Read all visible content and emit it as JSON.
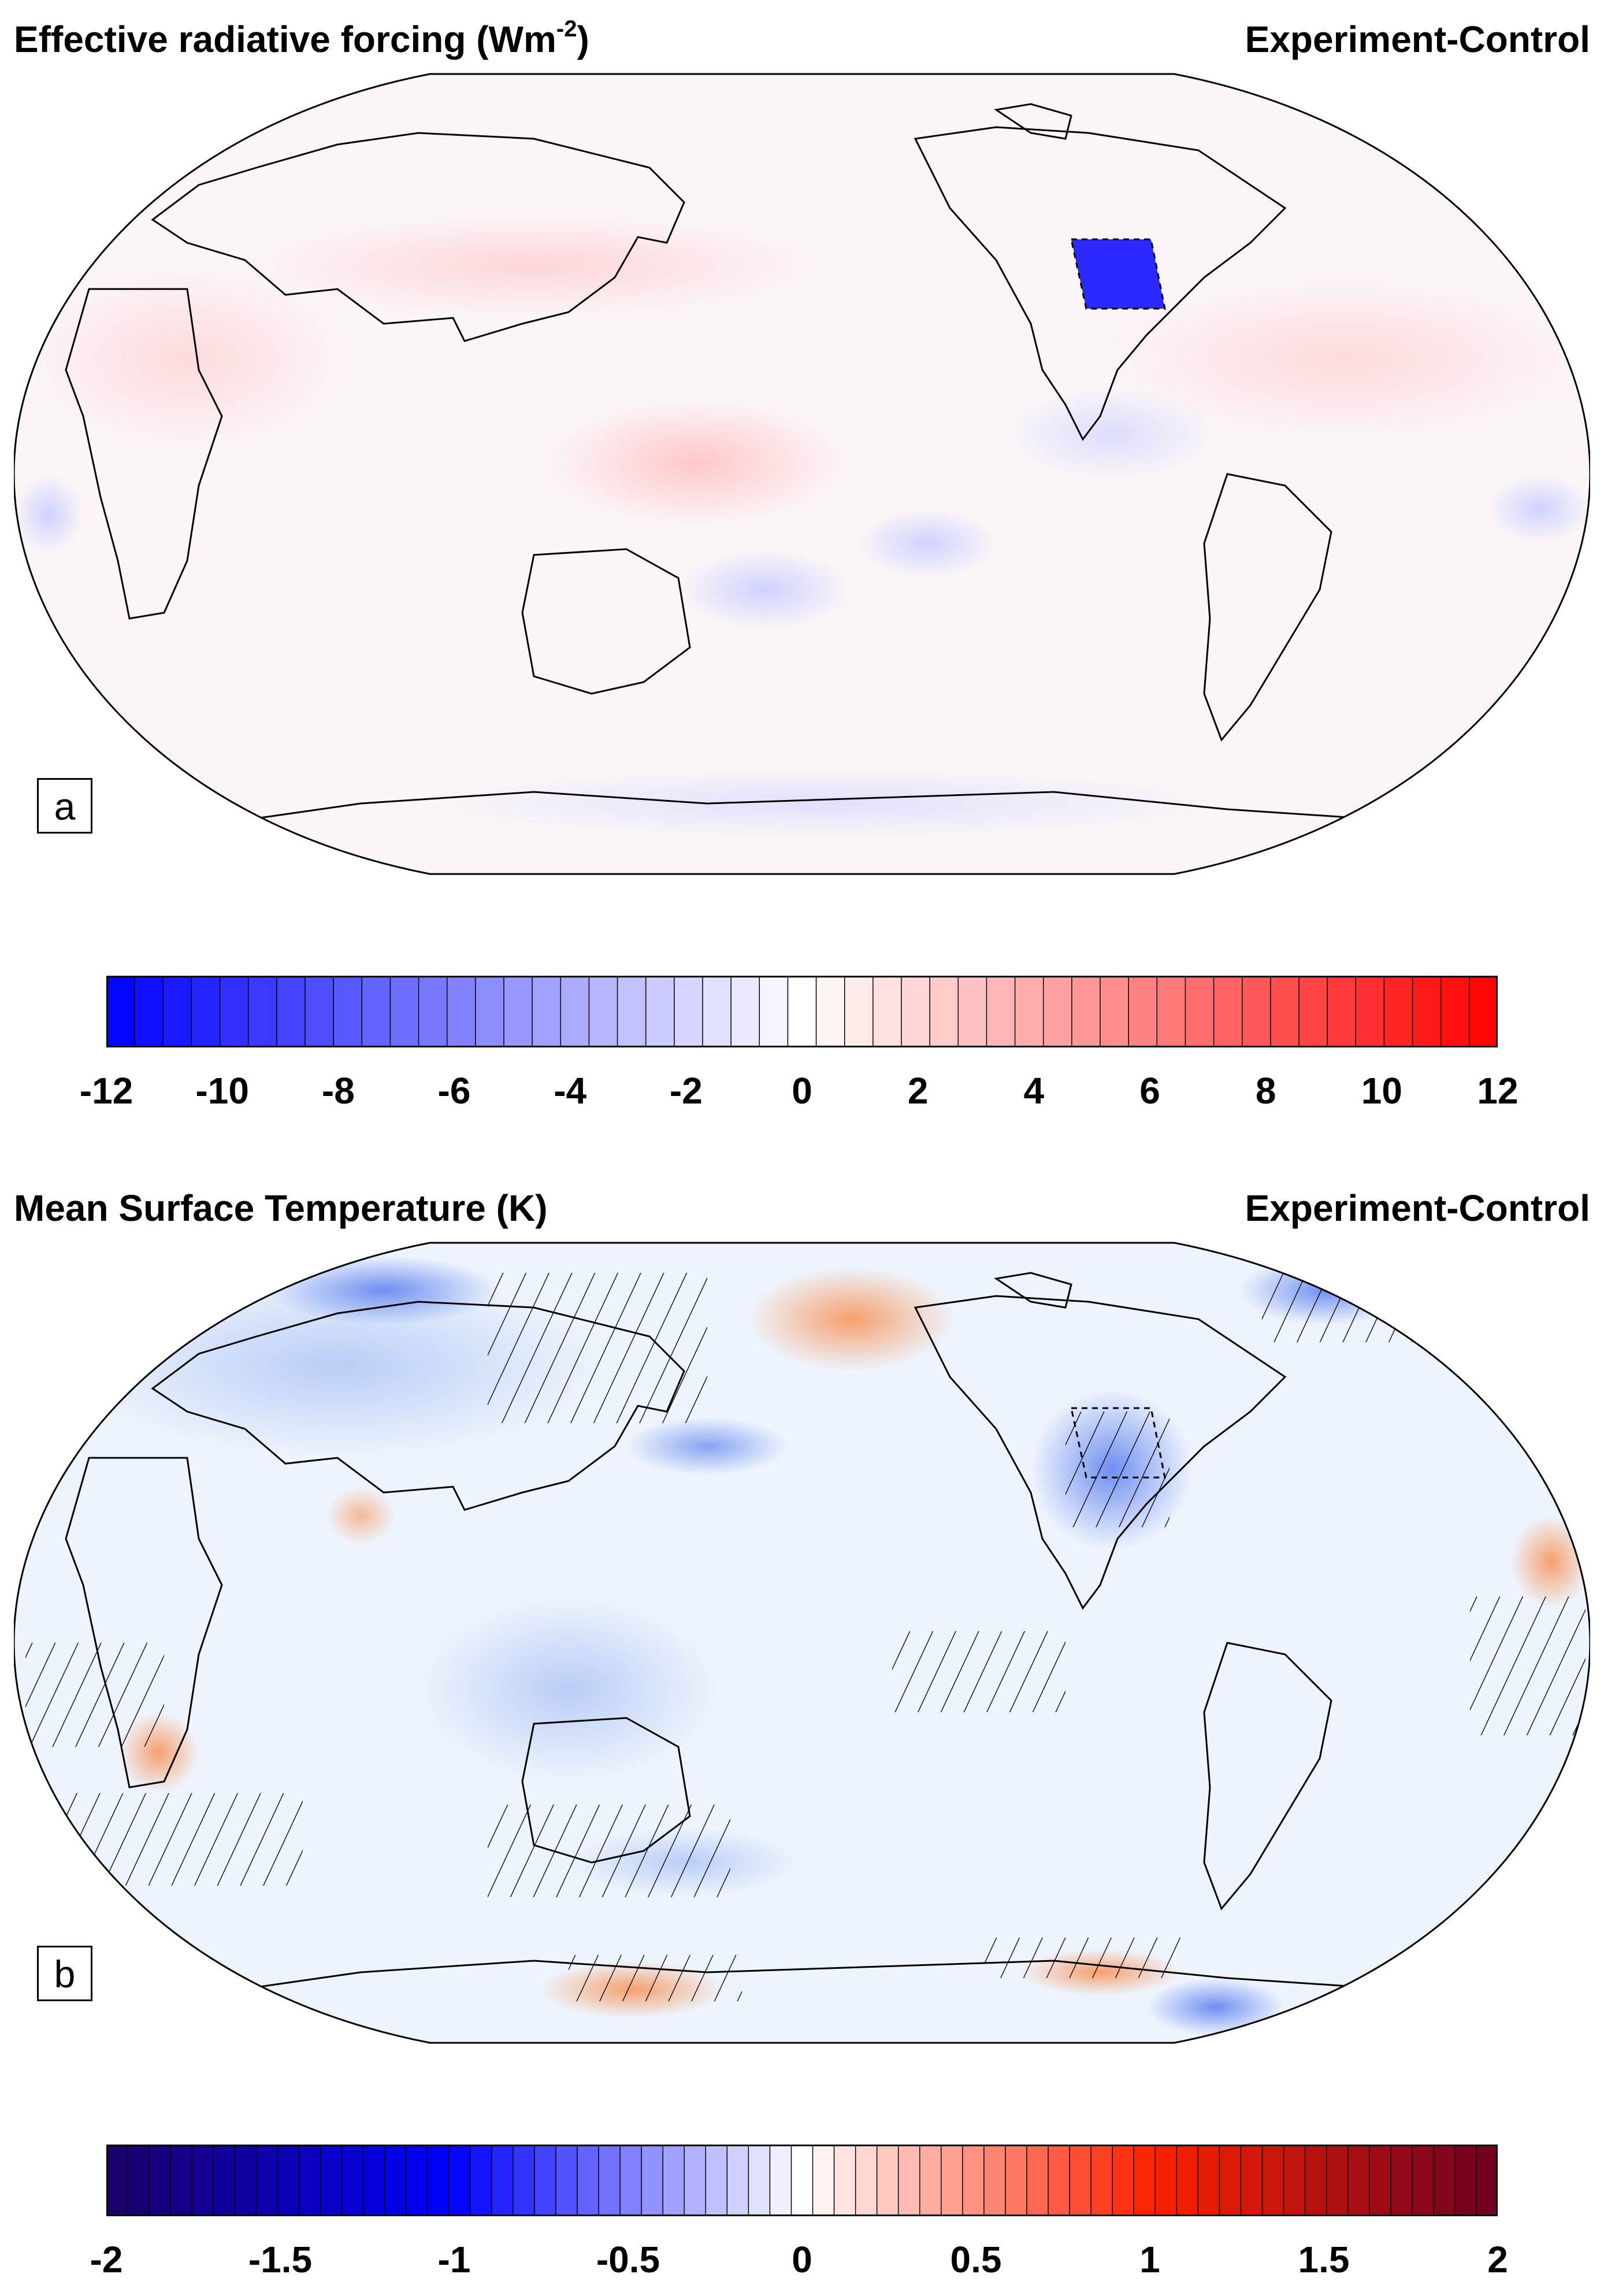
{
  "panel_a": {
    "title": "Effective radiative forcing (Wm",
    "title_sup": "-2",
    "title_close": ")",
    "subtitle": "Experiment-Control",
    "label": "a",
    "colorbar": {
      "min": -12,
      "max": 12,
      "levels": 49,
      "ticks": [
        "-12",
        "-10",
        "-8",
        "-6",
        "-4",
        "-2",
        "0",
        "2",
        "4",
        "6",
        "8",
        "10",
        "12"
      ],
      "colors": [
        "#0000ff",
        "#ffffff",
        "#ff0000"
      ]
    }
  },
  "panel_b": {
    "title": "Mean Surface Temperature (K)",
    "subtitle": "Experiment-Control",
    "label": "b",
    "colorbar": {
      "min": -2,
      "max": 2,
      "levels": 65,
      "ticks": [
        "-2",
        "-1.5",
        "-1",
        "-0.5",
        "0",
        "0.5",
        "1",
        "1.5",
        "2"
      ],
      "colors": [
        "#1a0066",
        "#0000ff",
        "#ffffff",
        "#ff2200",
        "#6b0020"
      ]
    }
  },
  "map": {
    "projection": "Robinson",
    "center_longitude": "Pacific-centred"
  }
}
